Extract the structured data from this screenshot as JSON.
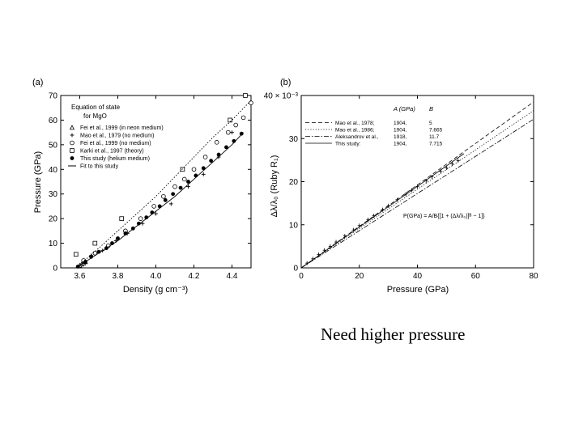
{
  "caption": "Need higher pressure",
  "chart_data": [
    {
      "panel": "(a)",
      "type": "scatter",
      "xlabel": "Density (g cm⁻³)",
      "ylabel": "Pressure (GPa)",
      "xlim": [
        3.5,
        4.5
      ],
      "ylim": [
        0,
        70
      ],
      "xticks": [
        "3.6",
        "3.8",
        "4.0",
        "4.2",
        "4.4"
      ],
      "yticks": [
        "0",
        "10",
        "20",
        "30",
        "40",
        "50",
        "60",
        "70"
      ],
      "legend_title": [
        "Equation of state",
        "for MgO"
      ],
      "legend_position": "top-left",
      "series": [
        {
          "name": "Fei et al., 1999 (in neon medium)",
          "marker": "triangle",
          "x": [
            3.6,
            3.61,
            3.62,
            3.63
          ],
          "y": [
            1,
            1.5,
            2,
            2.5
          ]
        },
        {
          "name": "Mao et al., 1979 (no medium)",
          "marker": "plus",
          "x": [
            3.66,
            3.72,
            3.79,
            3.85,
            3.93,
            4.0,
            4.08,
            4.17,
            4.25,
            4.33,
            4.4
          ],
          "y": [
            5,
            7,
            11,
            14,
            18,
            22,
            26,
            33,
            38,
            45,
            55
          ]
        },
        {
          "name": "Fei et al., 1999 (no medium)",
          "marker": "circle",
          "x": [
            3.62,
            3.68,
            3.75,
            3.84,
            3.92,
            3.99,
            4.04,
            4.1,
            4.15,
            4.2,
            4.26,
            4.32,
            4.38,
            4.42,
            4.46,
            4.5
          ],
          "y": [
            3,
            6,
            9,
            15,
            20,
            25,
            29,
            33,
            36,
            40,
            45,
            51,
            55,
            58,
            61,
            67
          ]
        },
        {
          "name": "Karki et al., 1997 (theory)",
          "marker": "square",
          "x": [
            3.58,
            3.68,
            3.82,
            4.14,
            4.39,
            4.47
          ],
          "y": [
            5.5,
            10,
            20,
            40,
            60,
            70
          ]
        },
        {
          "name": "This study (helium medium)",
          "marker": "filled-circle",
          "x": [
            3.59,
            3.63,
            3.66,
            3.7,
            3.74,
            3.77,
            3.8,
            3.84,
            3.88,
            3.91,
            3.95,
            3.98,
            4.02,
            4.05,
            4.09,
            4.13,
            4.17,
            4.21,
            4.25,
            4.29,
            4.33,
            4.37,
            4.41,
            4.45
          ],
          "y": [
            0.5,
            2.5,
            4.5,
            6.5,
            8,
            10,
            12,
            14,
            16,
            18,
            20.5,
            22.5,
            25,
            27.5,
            30,
            32.5,
            35,
            37.5,
            40.5,
            43.5,
            46,
            49,
            51.5,
            54.5
          ]
        },
        {
          "name": "Fit to this study",
          "marker": "line",
          "x": [
            3.58,
            3.7,
            3.8,
            3.9,
            4.0,
            4.1,
            4.2,
            4.3,
            4.4,
            4.46
          ],
          "y": [
            0,
            6,
            11,
            17,
            23,
            29,
            36,
            43,
            50,
            55
          ]
        },
        {
          "name": "",
          "marker": "dotted-line",
          "x": [
            3.58,
            3.7,
            3.8,
            3.9,
            4.0,
            4.1,
            4.2,
            4.3,
            4.4,
            4.5
          ],
          "y": [
            0,
            8,
            15,
            22,
            29,
            37,
            45,
            53,
            60,
            68
          ]
        }
      ]
    },
    {
      "panel": "(b)",
      "type": "line",
      "xlabel": "Pressure (GPa)",
      "ylabel": "Δλ/λ₀ (Ruby R₁)",
      "xlim": [
        0,
        80
      ],
      "ylim": [
        0,
        40
      ],
      "xticks": [
        "0",
        "20",
        "40",
        "60",
        "80"
      ],
      "yticks": [
        "0",
        "10",
        "20",
        "30",
        "40 × 10⁻³"
      ],
      "legend_position": "top-left",
      "legend_headers": [
        "A (GPa)",
        "B"
      ],
      "equation": "P(GPa) = A/B{[1 + (Δλ/λ₀)]ᴮ − 1]}",
      "series": [
        {
          "name": "Mao et al., 1978;",
          "A": "1904,",
          "B": "5",
          "style": "dashed",
          "x": [
            0,
            80
          ],
          "y": [
            0,
            38.5
          ]
        },
        {
          "name": "Mao et al., 1986;",
          "A": "1904,",
          "B": "7.665",
          "style": "dotted",
          "x": [
            0,
            80
          ],
          "y": [
            0,
            36.5
          ]
        },
        {
          "name": "Aleksandrov et al.,",
          "A": "1918,",
          "B": "11.7",
          "style": "dash-dot",
          "x": [
            0,
            80
          ],
          "y": [
            0,
            34.5
          ]
        },
        {
          "name": "This study:",
          "A": "1904,",
          "B": "7.715",
          "style": "solid",
          "x": [
            0,
            56
          ],
          "y": [
            0,
            26.5
          ]
        }
      ],
      "markers": {
        "x": [
          2,
          4,
          6,
          8,
          10,
          12,
          15,
          18,
          20,
          23,
          25,
          28,
          30,
          33,
          36,
          38,
          40,
          43,
          45,
          48,
          50,
          52,
          54
        ],
        "y": [
          1.1,
          2.1,
          3.1,
          4.1,
          5.0,
          6.0,
          7.4,
          8.8,
          9.8,
          11.2,
          12.1,
          13.5,
          14.4,
          15.8,
          17.1,
          18.0,
          18.9,
          20.2,
          21.1,
          22.4,
          23.2,
          24.1,
          24.9
        ]
      }
    }
  ]
}
